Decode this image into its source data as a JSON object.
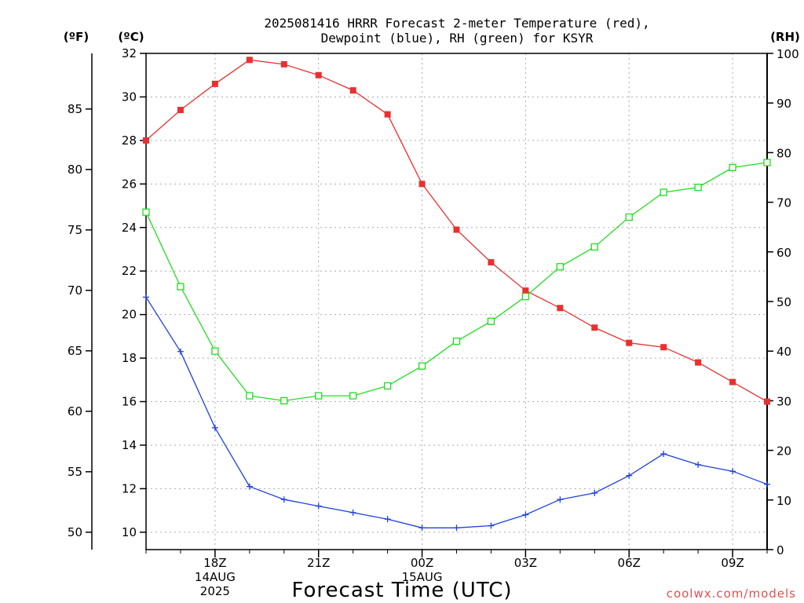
{
  "chart_data": {
    "type": "line",
    "title_line1": "2025081416 HRRR Forecast 2-meter Temperature (red),",
    "title_line2": "Dewpoint (blue), RH (green) for KSYR",
    "xlabel": "Forecast Time (UTC)",
    "credit": "coolwx.com/models",
    "unit_f": "(ºF)",
    "unit_c": "(ºC)",
    "unit_rh": "(RH)",
    "x_hours_utc": [
      16,
      17,
      18,
      19,
      20,
      21,
      22,
      23,
      24,
      25,
      26,
      27,
      28,
      29,
      30,
      31,
      32,
      33,
      34
    ],
    "xlim": [
      16,
      34
    ],
    "x_ticks": [
      {
        "x": 18,
        "lines": [
          "18Z",
          "14AUG",
          "2025"
        ]
      },
      {
        "x": 21,
        "lines": [
          "21Z"
        ]
      },
      {
        "x": 24,
        "lines": [
          "00Z",
          "15AUG"
        ]
      },
      {
        "x": 27,
        "lines": [
          "03Z"
        ]
      },
      {
        "x": 30,
        "lines": [
          "06Z"
        ]
      },
      {
        "x": 33,
        "lines": [
          "09Z"
        ]
      }
    ],
    "y_celsius": {
      "ylim": [
        9.2,
        32
      ],
      "ticks": [
        10,
        12,
        14,
        16,
        18,
        20,
        22,
        24,
        26,
        28,
        30,
        32
      ]
    },
    "y_fahrenheit": {
      "ticks": [
        50,
        55,
        60,
        65,
        70,
        75,
        80,
        85
      ]
    },
    "y_rh": {
      "ylim": [
        0,
        100
      ],
      "ticks": [
        0,
        10,
        20,
        30,
        40,
        50,
        60,
        70,
        80,
        90,
        100
      ]
    },
    "grid": true,
    "series": [
      {
        "name": "Temperature",
        "axis": "celsius",
        "color": "#e83030",
        "marker": "filled-square",
        "values": [
          28.0,
          29.4,
          30.6,
          31.7,
          31.5,
          31.0,
          30.3,
          29.2,
          26.0,
          23.9,
          22.4,
          21.1,
          20.3,
          19.4,
          18.7,
          18.5,
          17.8,
          16.9,
          16.0
        ]
      },
      {
        "name": "Dewpoint",
        "axis": "celsius",
        "color": "#2040e0",
        "marker": "plus",
        "values": [
          20.8,
          18.3,
          14.8,
          12.1,
          11.5,
          11.2,
          10.9,
          10.6,
          10.2,
          10.2,
          10.3,
          10.8,
          11.5,
          11.8,
          12.6,
          13.6,
          13.1,
          12.8,
          12.2
        ]
      },
      {
        "name": "RH",
        "axis": "rh",
        "color": "#20dd20",
        "marker": "open-square",
        "values": [
          68,
          53,
          40,
          31,
          30,
          31,
          31,
          33,
          37,
          42,
          46,
          51,
          57,
          61,
          67,
          72,
          73,
          77,
          78
        ]
      }
    ]
  }
}
